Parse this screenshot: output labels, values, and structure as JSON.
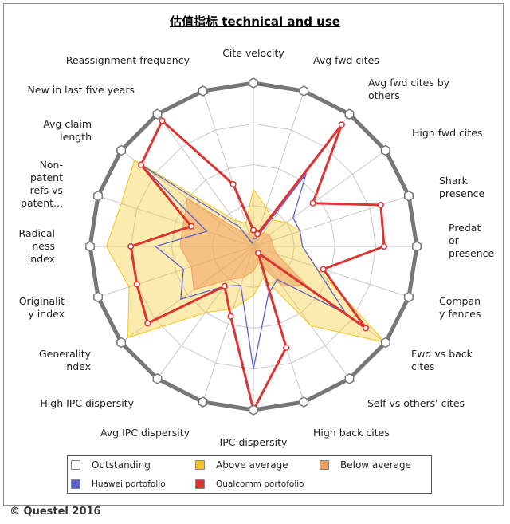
{
  "chart_data": {
    "type": "radar",
    "title": "估值指标 technical and use",
    "axes": [
      "Cite velocity",
      "Avg fwd cites",
      "Avg fwd cites by others",
      "High fwd cites",
      "Shark presence",
      "Predator presence",
      "Company fences",
      "Fwd vs back cites",
      "Self vs others' cites",
      "High back cites",
      "IPC dispersity",
      "Avg IPC dispersity",
      "High IPC dispersity",
      "Generality index",
      "Originality index",
      "Radicalness index",
      "Non-patent refs vs patent...",
      "Avg claim length",
      "New in last five years",
      "Reassignment frequency"
    ],
    "axis_labels": [
      [
        "Cite velocity"
      ],
      [
        "Avg fwd cites"
      ],
      [
        "Avg fwd cites by",
        "others"
      ],
      [
        "High fwd cites"
      ],
      [
        "Shark",
        "presence"
      ],
      [
        "Predat",
        "or",
        "presence"
      ],
      [
        "Compan",
        "y fences"
      ],
      [
        "Fwd vs back",
        "cites"
      ],
      [
        "Self vs others' cites"
      ],
      [
        "High back cites"
      ],
      [
        "IPC dispersity"
      ],
      [
        "Avg IPC dispersity"
      ],
      [
        "High IPC dispersity"
      ],
      [
        "Generality",
        "index"
      ],
      [
        "Originalit",
        "y index"
      ],
      [
        "Radical",
        "ness",
        "index"
      ],
      [
        "Non-",
        "patent",
        "refs vs",
        "patent..."
      ],
      [
        "Avg claim",
        "length"
      ],
      [
        "New in last five years"
      ],
      [
        "Reassignment frequency"
      ]
    ],
    "range": [
      0,
      1
    ],
    "bands": [
      {
        "name": "Outstanding",
        "color": "#ffffff"
      },
      {
        "name": "Above average",
        "color": "#f5c518"
      },
      {
        "name": "Below average",
        "color": "#f0a060"
      }
    ],
    "series": [
      {
        "name": "Above average",
        "color": "#f5c518",
        "fill": true,
        "values": [
          0.35,
          0.25,
          0.2,
          0.25,
          0.3,
          0.3,
          0.4,
          1.0,
          0.6,
          0.2,
          0.3,
          0.4,
          0.5,
          0.95,
          0.8,
          0.9,
          0.85,
          0.9,
          0.2,
          0.15
        ]
      },
      {
        "name": "Below average",
        "color": "#f0a060",
        "fill": true,
        "values": [
          0.12,
          0.1,
          0.1,
          0.12,
          0.12,
          0.12,
          0.15,
          0.4,
          0.3,
          0.1,
          0.15,
          0.2,
          0.25,
          0.45,
          0.4,
          0.45,
          0.45,
          0.5,
          0.1,
          0.08
        ]
      },
      {
        "name": "Huawei portofolio",
        "color": "#6060d0",
        "fill": false,
        "values": [
          0.05,
          0.05,
          0.55,
          0.3,
          0.3,
          0.3,
          0.4,
          0.7,
          0.25,
          0.3,
          0.75,
          0.25,
          0.3,
          0.55,
          0.45,
          0.6,
          0.3,
          0.85,
          0.15,
          0.02
        ]
      },
      {
        "name": "Qualcomm portofolio",
        "color": "#dd3333",
        "fill": false,
        "values": [
          0.1,
          0.08,
          0.92,
          0.45,
          0.82,
          0.8,
          0.45,
          0.85,
          0.05,
          0.65,
          1.0,
          0.45,
          0.3,
          0.8,
          0.75,
          0.75,
          0.4,
          0.85,
          0.95,
          0.4
        ]
      }
    ],
    "legend": {
      "position": "bottom"
    }
  },
  "legend": {
    "outstanding": "Outstanding",
    "above_average": "Above average",
    "below_average": "Below average",
    "huawei": "Huawei portofolio",
    "qualcomm": "Qualcomm portofolio"
  },
  "copyright": "© Questel 2016"
}
